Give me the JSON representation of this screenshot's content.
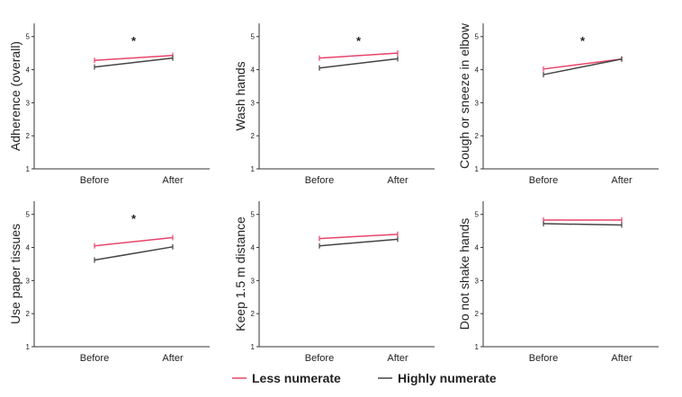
{
  "series": [
    {
      "name": "Less numerate",
      "color": "#e8436a"
    },
    {
      "name": "Highly numerate",
      "color": "#444444"
    }
  ],
  "chart_data": [
    {
      "type": "line",
      "ylabel": "Adherence (overall)",
      "annotation": "*",
      "categories": [
        "Before",
        "After"
      ],
      "ylim": [
        1,
        5.4
      ],
      "yticks": [
        1,
        2,
        3,
        4,
        5
      ],
      "series": [
        {
          "values": [
            4.28,
            4.43
          ]
        },
        {
          "values": [
            4.08,
            4.35
          ]
        }
      ]
    },
    {
      "type": "line",
      "ylabel": "Wash hands",
      "annotation": "*",
      "categories": [
        "Before",
        "After"
      ],
      "ylim": [
        1,
        5.4
      ],
      "yticks": [
        1,
        2,
        3,
        4,
        5
      ],
      "series": [
        {
          "values": [
            4.35,
            4.5
          ]
        },
        {
          "values": [
            4.05,
            4.33
          ]
        }
      ]
    },
    {
      "type": "line",
      "ylabel": "Cough or sneeze in elbow",
      "annotation": "*",
      "categories": [
        "Before",
        "After"
      ],
      "ylim": [
        1,
        5.4
      ],
      "yticks": [
        1,
        2,
        3,
        4,
        5
      ],
      "series": [
        {
          "values": [
            4.02,
            4.32
          ]
        },
        {
          "values": [
            3.85,
            4.32
          ]
        }
      ]
    },
    {
      "type": "line",
      "ylabel": "Use paper tissues",
      "annotation": "*",
      "categories": [
        "Before",
        "After"
      ],
      "ylim": [
        1,
        5.4
      ],
      "yticks": [
        1,
        2,
        3,
        4,
        5
      ],
      "series": [
        {
          "values": [
            4.05,
            4.3
          ]
        },
        {
          "values": [
            3.62,
            4.02
          ]
        }
      ]
    },
    {
      "type": "line",
      "ylabel": "Keep 1.5 m distance",
      "categories": [
        "Before",
        "After"
      ],
      "ylim": [
        1,
        5.4
      ],
      "yticks": [
        1,
        2,
        3,
        4,
        5
      ],
      "series": [
        {
          "values": [
            4.27,
            4.4
          ]
        },
        {
          "values": [
            4.05,
            4.25
          ]
        }
      ]
    },
    {
      "type": "line",
      "ylabel": "Do not shake hands",
      "categories": [
        "Before",
        "After"
      ],
      "ylim": [
        1,
        5.4
      ],
      "yticks": [
        1,
        2,
        3,
        4,
        5
      ],
      "series": [
        {
          "values": [
            4.83,
            4.83
          ]
        },
        {
          "values": [
            4.72,
            4.68
          ]
        }
      ]
    }
  ]
}
